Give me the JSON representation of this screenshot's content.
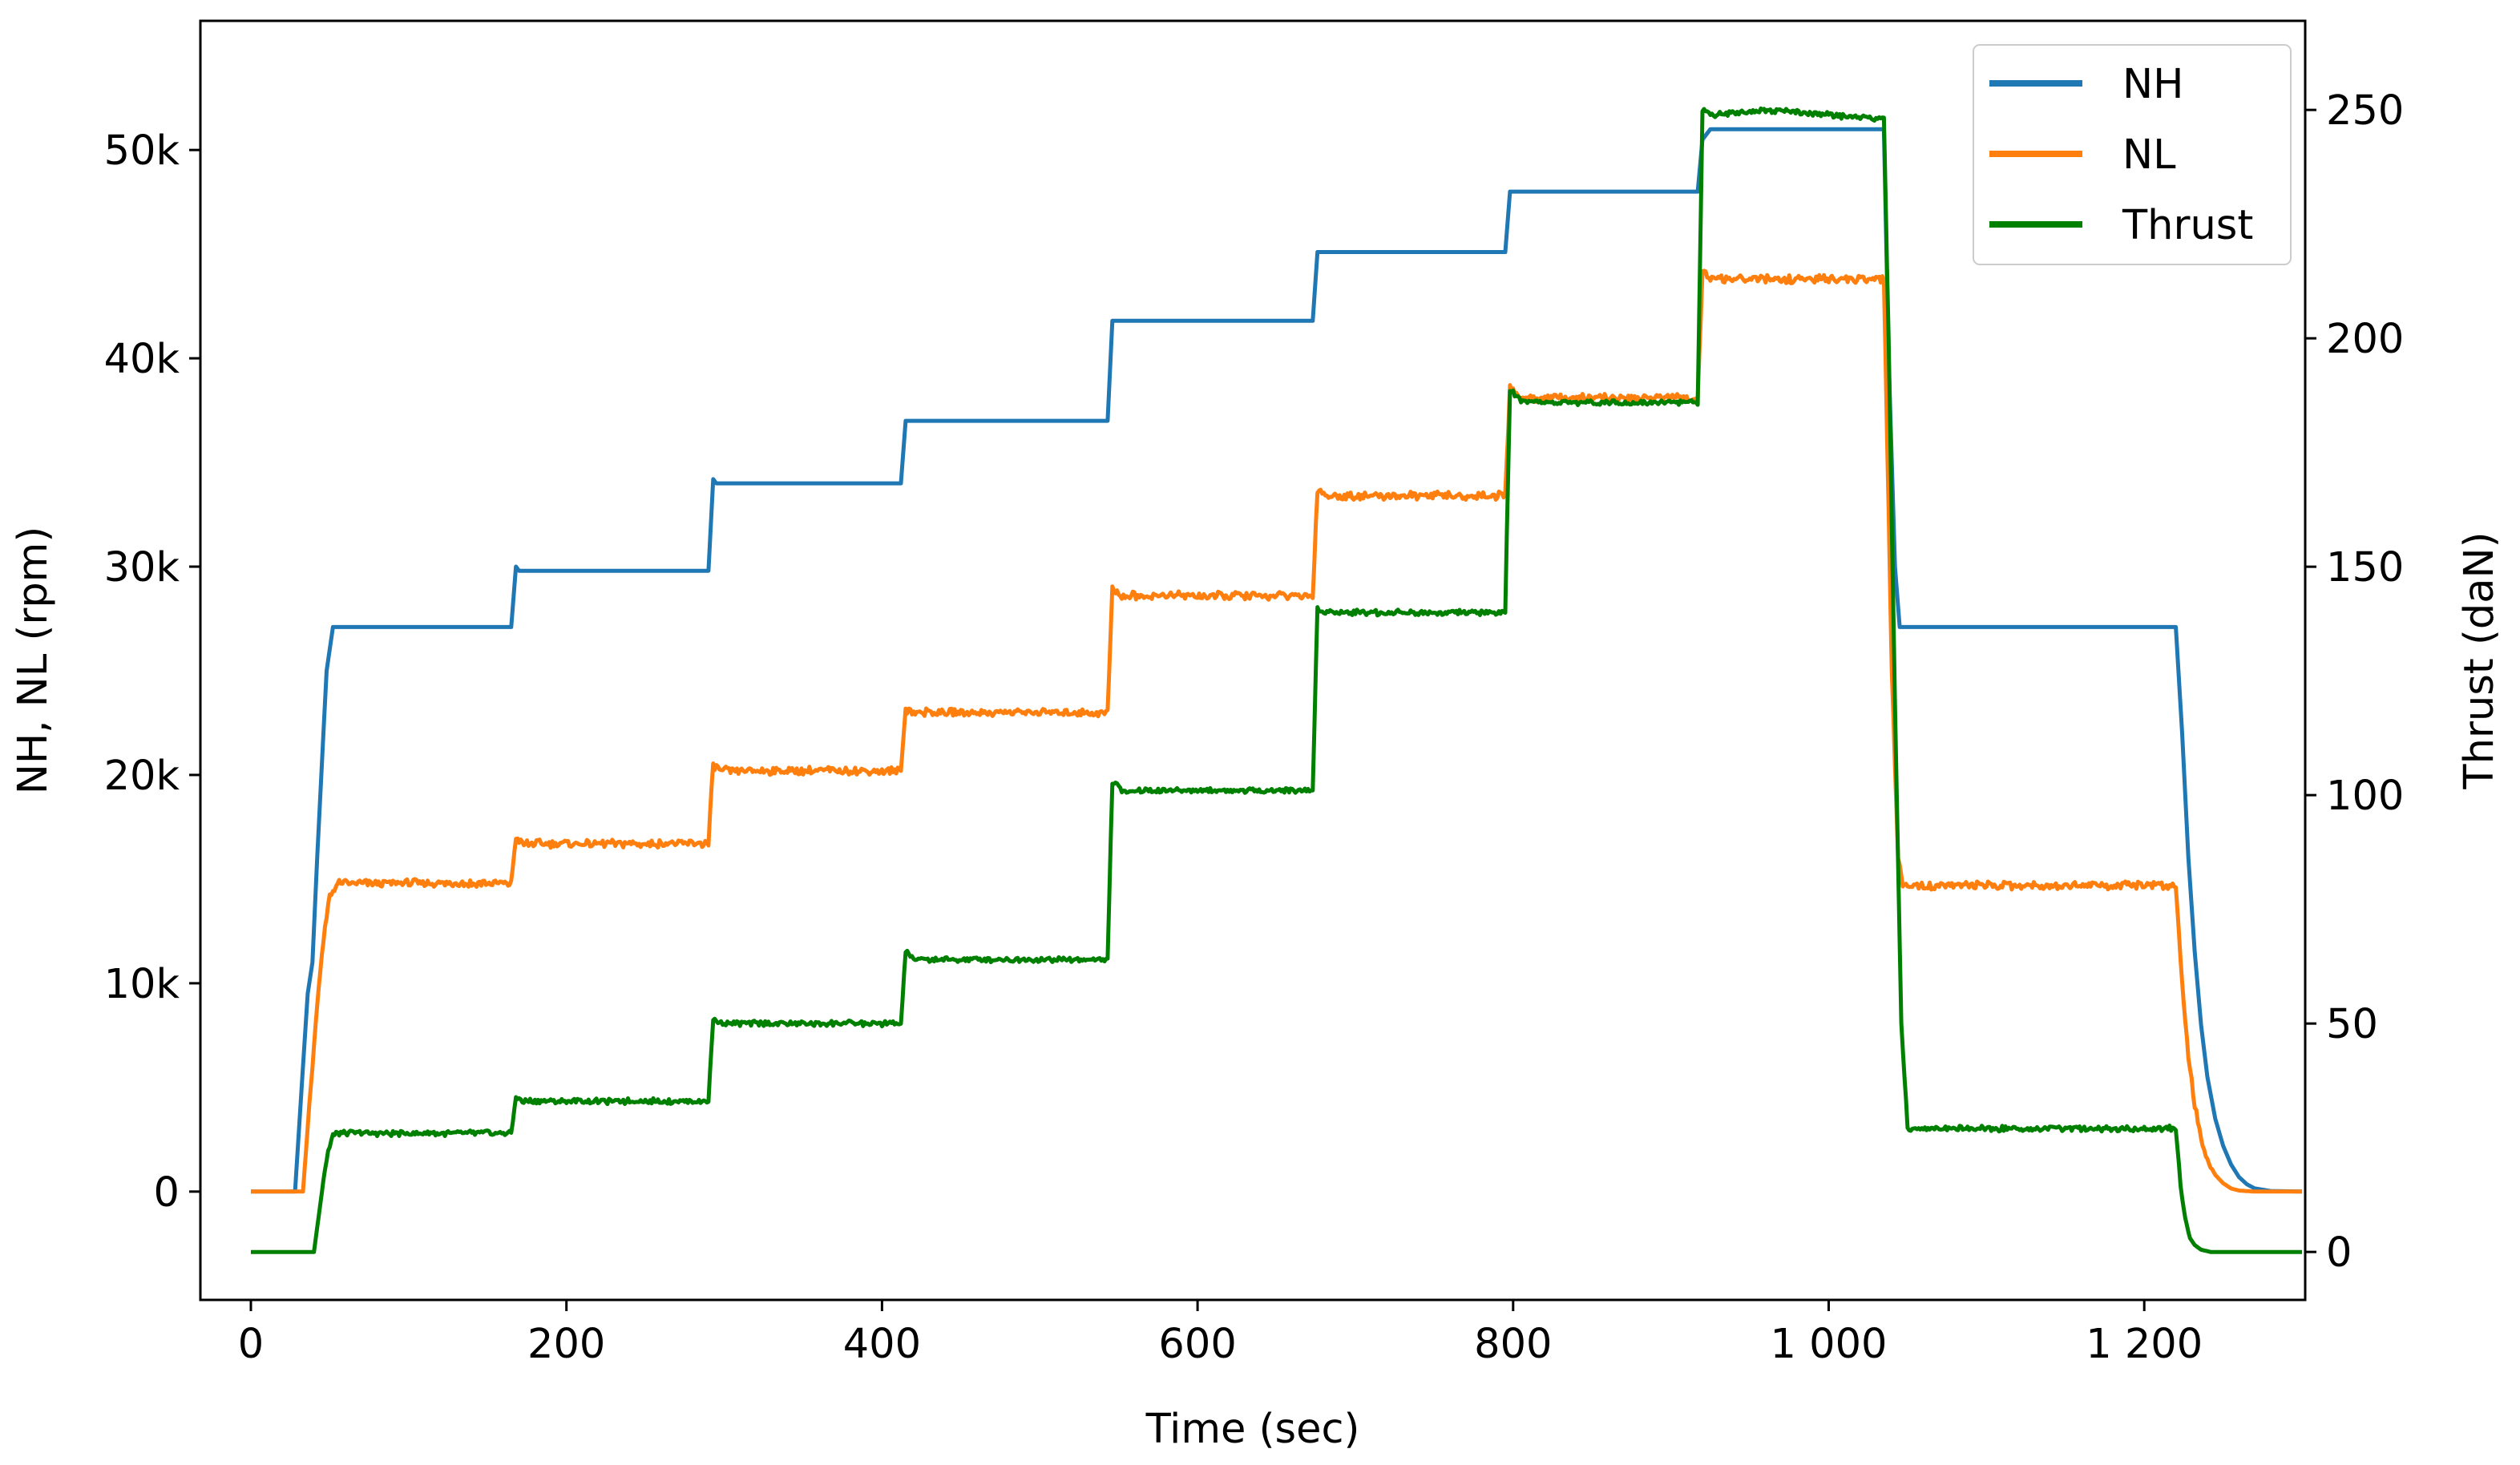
{
  "chart_data": {
    "type": "line",
    "title": "",
    "xlabel": "Time (sec)",
    "ylabel": "NH, NL (rpm)",
    "y2label": "Thrust (daN)",
    "xlim": [
      -32,
      1302
    ],
    "ylim": [
      -5200,
      56200
    ],
    "y2lim": [
      -10.5,
      269.5
    ],
    "x_ticks": [
      0,
      200,
      400,
      600,
      800,
      1000,
      1200
    ],
    "x_tick_labels": [
      "0",
      "200",
      "400",
      "600",
      "800",
      "1 000",
      "1 200"
    ],
    "y_ticks": [
      0,
      10000,
      20000,
      30000,
      40000,
      50000
    ],
    "y_tick_labels": [
      "0",
      "10k",
      "20k",
      "30k",
      "40k",
      "50k"
    ],
    "y2_ticks": [
      0,
      50,
      100,
      150,
      200,
      250
    ],
    "y2_tick_labels": [
      "0",
      "50",
      "100",
      "150",
      "200",
      "250"
    ],
    "grid": false,
    "legend_position": "top-right",
    "colors": {
      "NH": "#1f77b4",
      "NL": "#ff7f0e",
      "Thrust": "#008000"
    },
    "series": [
      {
        "name": "NH",
        "axis": "left",
        "color": "#1f77b4",
        "noise": 0,
        "x": [
          0,
          28,
          33,
          36,
          39,
          42,
          46,
          48,
          52,
          165,
          168,
          170,
          290,
          293,
          295,
          412,
          415,
          418,
          543,
          546,
          549,
          673,
          676,
          680,
          795,
          798,
          802,
          917,
          920,
          925,
          1035,
          1038,
          1042,
          1045,
          1220,
          1224,
          1228,
          1232,
          1236,
          1240,
          1245,
          1250,
          1255,
          1260,
          1265,
          1270,
          1280,
          1300
        ],
        "y": [
          0,
          0,
          6000,
          9500,
          11000,
          16000,
          22000,
          25000,
          27100,
          27100,
          30000,
          29800,
          29800,
          34200,
          34000,
          34000,
          37000,
          37000,
          37000,
          41800,
          41800,
          41800,
          45100,
          45100,
          45100,
          48000,
          48000,
          48000,
          50500,
          51000,
          51000,
          40000,
          30000,
          27100,
          27100,
          22000,
          16000,
          11500,
          8000,
          5500,
          3500,
          2200,
          1300,
          700,
          350,
          150,
          30,
          0
        ]
      },
      {
        "name": "NL",
        "axis": "left",
        "color": "#ff7f0e",
        "noise": 220,
        "x": [
          0,
          33,
          38,
          42,
          46,
          50,
          55,
          165,
          168,
          172,
          290,
          293,
          298,
          412,
          415,
          420,
          543,
          546,
          552,
          673,
          676,
          682,
          795,
          798,
          805,
          917,
          920,
          926,
          1035,
          1040,
          1044,
          1047,
          1220,
          1224,
          1228,
          1232,
          1236,
          1240,
          1245,
          1250,
          1255,
          1260,
          1270,
          1300
        ],
        "y": [
          0,
          0,
          5000,
          9000,
          12000,
          14200,
          14800,
          14800,
          17000,
          16700,
          16700,
          20500,
          20200,
          20200,
          23200,
          23000,
          23000,
          28900,
          28600,
          28600,
          33700,
          33400,
          33400,
          38600,
          38100,
          38100,
          44200,
          43800,
          43800,
          25000,
          16000,
          14700,
          14700,
          10000,
          6500,
          4200,
          2600,
          1500,
          800,
          400,
          150,
          50,
          0,
          0
        ]
      },
      {
        "name": "Thrust",
        "axis": "right",
        "color": "#008000",
        "noise": 0.7,
        "x": [
          0,
          40,
          43,
          46,
          49,
          52,
          56,
          165,
          168,
          172,
          290,
          293,
          298,
          412,
          415,
          420,
          543,
          546,
          552,
          673,
          676,
          682,
          795,
          798,
          805,
          917,
          920,
          926,
          960,
          1035,
          1038,
          1042,
          1046,
          1050,
          1220,
          1223,
          1226,
          1229,
          1232,
          1236,
          1242,
          1300
        ],
        "y": [
          0,
          0,
          8,
          16,
          22,
          25.5,
          26,
          26,
          34,
          33,
          33,
          51,
          50,
          50,
          66,
          64,
          64,
          103,
          101,
          101,
          141,
          140,
          140,
          189,
          186,
          186,
          250,
          249,
          250,
          248,
          200,
          120,
          50,
          27,
          27,
          15,
          7,
          3,
          1.5,
          0.5,
          0,
          0
        ]
      }
    ]
  }
}
